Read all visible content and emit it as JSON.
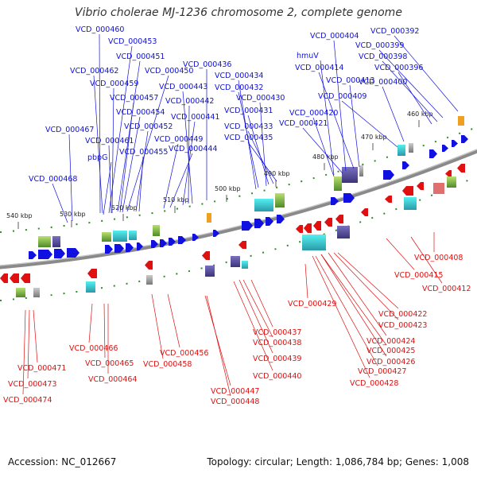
{
  "title": "Vibrio cholerae MJ-1236 chromosome 2, complete genome",
  "footer": {
    "accession": "Accession: NC_012667",
    "summary": "Topology: circular; Length: 1,086,784 bp; Genes: 1,008"
  },
  "colors": {
    "forward": "#1010e0",
    "reverse": "#e01010",
    "backbone": "#8a8a8a",
    "tick": "#2e8b2e"
  },
  "ticks": [
    "540 kbp",
    "530 kbp",
    "520 kbp",
    "510 kbp",
    "500 kbp",
    "490 kbp",
    "480 kbp",
    "470 kbp",
    "460 kbp"
  ],
  "forward_labels": [
    "VCD_000460",
    "VCD_000453",
    "VCD_000451",
    "VCD_000462",
    "VCD_000450",
    "VCD_000459",
    "VCD_000457",
    "VCD_000454",
    "VCD_000452",
    "VCD_000461",
    "VCD_000455",
    "pbpG",
    "VCD_000467",
    "VCD_000468",
    "VCD_000449",
    "VCD_000444",
    "VCD_000441",
    "VCD_000442",
    "VCD_000443",
    "VCD_000436",
    "VCD_000434",
    "VCD_000432",
    "VCD_000430",
    "VCD_000431",
    "VCD_000433",
    "VCD_000435",
    "VCD_000404",
    "hmuV",
    "VCD_000414",
    "VCD_000413",
    "VCD_000420",
    "VCD_000421",
    "VCD_000409",
    "VCD_000392",
    "VCD_000399",
    "VCD_000398",
    "VCD_000396",
    "VCD_000400"
  ],
  "reverse_labels": [
    "VCD_000466",
    "VCD_000465",
    "VCD_000464",
    "VCD_000471",
    "VCD_000473",
    "VCD_000474",
    "VCD_000456",
    "VCD_000458",
    "VCD_000447",
    "VCD_000448",
    "VCD_000437",
    "VCD_000438",
    "VCD_000439",
    "VCD_000440",
    "VCD_000429",
    "VCD_000422",
    "VCD_000423",
    "VCD_000424",
    "VCD_000426",
    "VCD_000425",
    "VCD_000427",
    "VCD_000428",
    "VCD_000415",
    "VCD_000412",
    "VCD_000408"
  ]
}
